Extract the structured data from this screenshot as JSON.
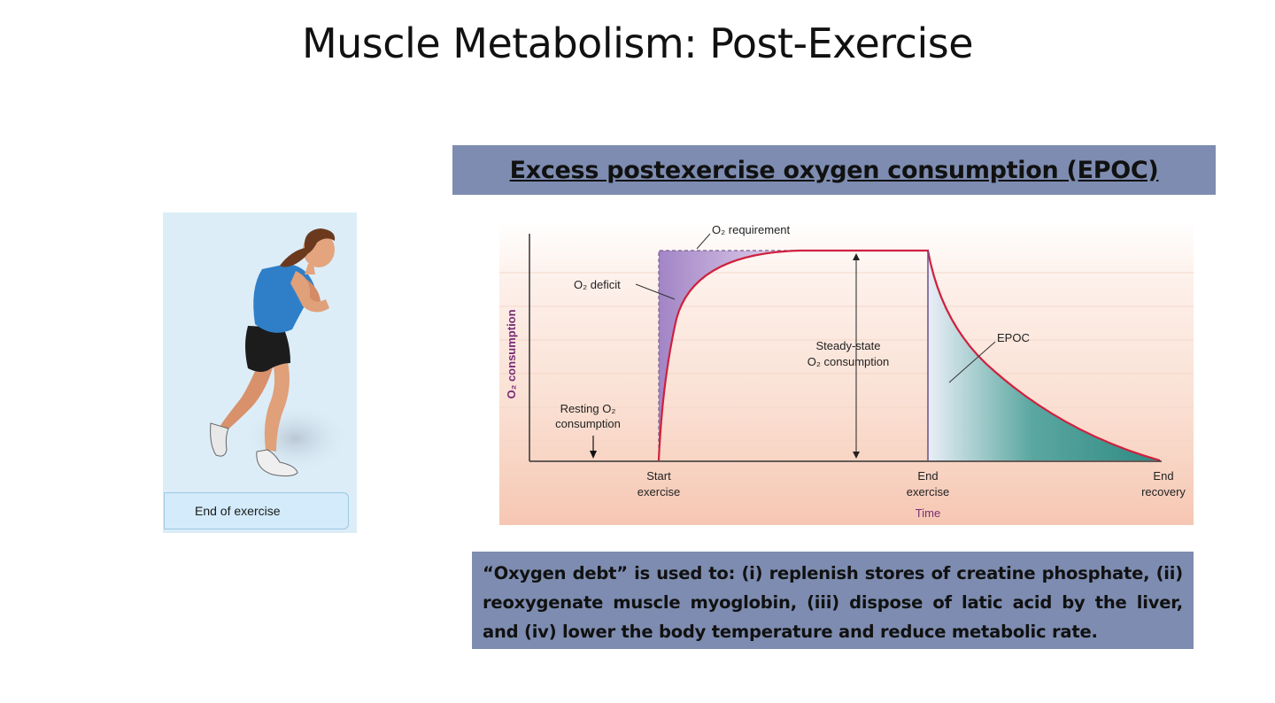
{
  "slide": {
    "title": "Muscle Metabolism: Post-Exercise"
  },
  "banner": {
    "text": "Excess postexercise oxygen consumption (EPOC)"
  },
  "runner": {
    "caption": "End of exercise"
  },
  "graph": {
    "y_axis_label": "O₂ consumption",
    "x_axis_label": "Time",
    "labels": {
      "o2_requirement": "O₂ requirement",
      "o2_deficit": "O₂ deficit",
      "steady_state_line1": "Steady-state",
      "steady_state_line2": "O₂ consumption",
      "epoc": "EPOC",
      "resting_line1": "Resting O₂",
      "resting_line2": "consumption"
    },
    "x_ticks": {
      "start_line1": "Start",
      "start_line2": "exercise",
      "end_line1": "End",
      "end_line2": "exercise",
      "recovery_line1": "End",
      "recovery_line2": "recovery"
    },
    "colors": {
      "curve": "#d0203e",
      "deficit_fill": "#b59ad0",
      "epoc_fill": "#2f8a84",
      "label": "#7a2d76"
    }
  },
  "note": {
    "text": "“Oxygen debt” is used to: (i) replenish stores of creatine phosphate, (ii) reoxygenate muscle myoglobin, (iii) dispose of latic acid by the liver, and (iv) lower the body temperature and reduce metabolic rate."
  }
}
